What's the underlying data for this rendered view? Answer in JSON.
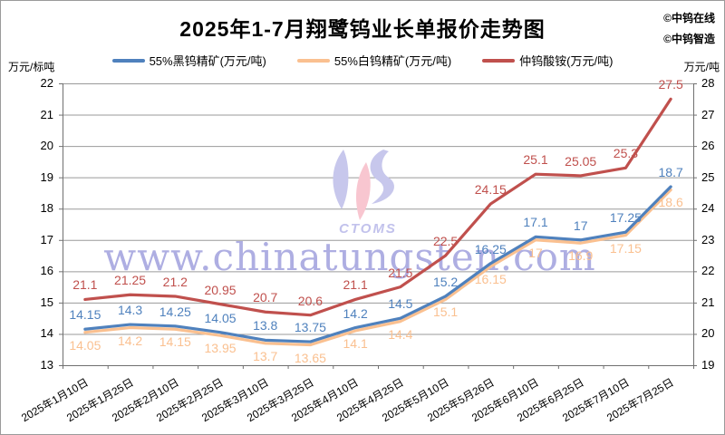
{
  "title": "2025年1-7月翔鹭钨业长单报价走势图",
  "credits": [
    "©中钨在线",
    "©中钨智造"
  ],
  "watermark": {
    "url_text": "www.chinatungsten.com",
    "logo_text": "CTOMS"
  },
  "chart_data": {
    "type": "line",
    "title": "2025年1-7月翔鹭钨业长单报价走势图",
    "grid": true,
    "legend_position": "top",
    "categories": [
      "2025年1月10日",
      "2025年1月25日",
      "2025年2月10日",
      "2025年2月25日",
      "2025年3月10日",
      "2025年3月25日",
      "2025年4月10日",
      "2025年4月25日",
      "2025年5月10日",
      "2025年5月26日",
      "2025年6月10日",
      "2025年6月25日",
      "2025年7月10日",
      "2025年7月25日"
    ],
    "left_axis": {
      "label": "万元/标吨",
      "min": 13,
      "max": 22,
      "step": 1
    },
    "right_axis": {
      "label": "万元/吨",
      "min": 19,
      "max": 28,
      "step": 1
    },
    "series": [
      {
        "name": "55%黑钨精矿(万元/吨)",
        "color": "#4F81BD",
        "axis": "left",
        "label_side": "above",
        "values": [
          14.15,
          14.3,
          14.25,
          14.05,
          13.8,
          13.75,
          14.2,
          14.5,
          15.2,
          16.25,
          17.1,
          17,
          17.25,
          18.7
        ]
      },
      {
        "name": "55%白钨精矿(万元/吨)",
        "color": "#FAC090",
        "axis": "left",
        "label_side": "below",
        "values": [
          14.05,
          14.2,
          14.15,
          13.95,
          13.7,
          13.65,
          14.1,
          14.4,
          15.1,
          16.15,
          17,
          16.9,
          17.15,
          18.6
        ]
      },
      {
        "name": "仲钨酸铵(万元/吨)",
        "color": "#C0504D",
        "axis": "right",
        "label_side": "above",
        "values": [
          21.1,
          21.25,
          21.2,
          20.95,
          20.7,
          20.6,
          21.1,
          21.5,
          22.5,
          24.15,
          25.1,
          25.05,
          25.3,
          27.5
        ]
      }
    ]
  }
}
